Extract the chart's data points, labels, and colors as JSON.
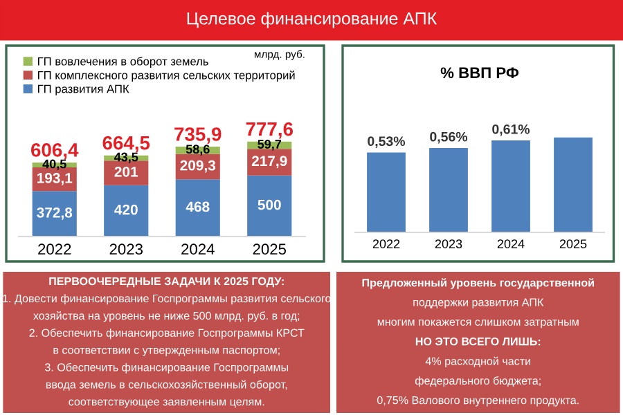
{
  "chart_data": [
    {
      "type": "bar",
      "title": "Целевое финансирование АПК",
      "stacked": true,
      "categories": [
        "2022",
        "2023",
        "2024",
        "2025"
      ],
      "legend": "top",
      "tick_labels": "x",
      "annotations": [
        "млрд. руб."
      ],
      "series": [
        {
          "name": "ГП развития АПК",
          "color": "#4f81bd",
          "values": [
            372.8,
            420,
            468,
            500
          ],
          "value_labels": [
            "372,8",
            "420",
            "468",
            "500"
          ]
        },
        {
          "name": "ГП комплексного развития сельских территорий",
          "color": "#c0504d",
          "values": [
            193.1,
            201,
            209.3,
            217.9
          ],
          "value_labels": [
            "193,1",
            "201",
            "209,3",
            "217,9"
          ]
        },
        {
          "name": "ГП вовлечения в оборот земель",
          "color": "#9bbb59",
          "values": [
            40.5,
            43.5,
            58.6,
            59.7
          ],
          "value_labels": [
            "40,5",
            "43,5",
            "58,6",
            "59,7"
          ]
        }
      ],
      "totals": [
        "606,4",
        "664,5",
        "735,9",
        "777,6"
      ]
    },
    {
      "type": "bar",
      "title": "% ВВП РФ",
      "categories": [
        "2022",
        "2023",
        "2024",
        "2025"
      ],
      "tick_labels": "x",
      "color": "#4f81bd",
      "values": [
        0.53,
        0.56,
        0.61,
        0.63
      ],
      "value_labels": [
        "0,53%",
        "0,56%",
        "0,61%",
        null
      ]
    },
    {
      "type": "other",
      "annotations": [
        "ПЕРВООЧЕРЕДНЫЕ ЗАДАЧИ К 2025 ГОДУ:",
        "1. Довести финансирование Госпрограммы развития сельского",
        "хозяйства на уровень не ниже 500 млрд. руб. в год;",
        "2. Обеспечить финансирование Госпрограммы КРСТ",
        "в соответствии с утвержденным паспортом;",
        "3. Обеспечить финансирование Госпрограммы",
        "ввода земель в сельскохозяйственный оборот,",
        "соответствующее заявленным целям."
      ]
    },
    {
      "type": "other",
      "annotations": [
        "Предложенный уровень государственной",
        "поддержки развития АПК",
        "многим покажется слишком затратным",
        "НО ЭТО ВСЕГО ЛИШЬ:",
        "4% расходной части",
        "федерального бюджета;",
        "0,75% Валового внутреннего продукта."
      ]
    }
  ]
}
